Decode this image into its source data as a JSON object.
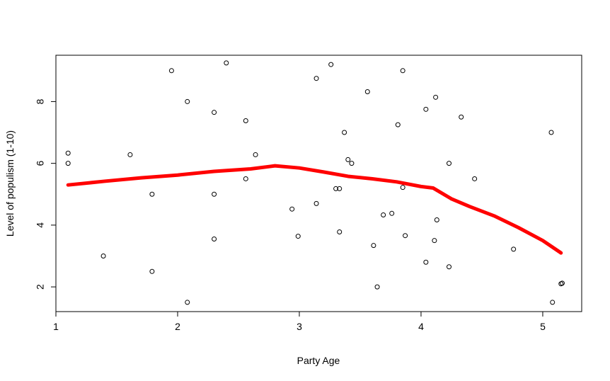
{
  "chart_data": {
    "type": "scatter",
    "title": "",
    "xlabel": "Party Age",
    "ylabel": "Level of populism (1-10)",
    "xlim": [
      1.0,
      5.32
    ],
    "ylim": [
      1.2,
      9.5
    ],
    "xticks": [
      1,
      2,
      3,
      4,
      5
    ],
    "yticks": [
      2,
      4,
      6,
      8
    ],
    "grid": false,
    "legend": "none",
    "colors": {
      "points": "#000000",
      "smooth": "#ff0000"
    },
    "points": [
      {
        "x": 1.1,
        "y": 6.33
      },
      {
        "x": 1.1,
        "y": 6.0
      },
      {
        "x": 1.39,
        "y": 3.0
      },
      {
        "x": 1.61,
        "y": 6.28
      },
      {
        "x": 1.79,
        "y": 5.0
      },
      {
        "x": 1.79,
        "y": 2.5
      },
      {
        "x": 1.95,
        "y": 9.0
      },
      {
        "x": 2.08,
        "y": 8.0
      },
      {
        "x": 2.08,
        "y": 1.5
      },
      {
        "x": 2.3,
        "y": 7.65
      },
      {
        "x": 2.3,
        "y": 5.0
      },
      {
        "x": 2.3,
        "y": 3.55
      },
      {
        "x": 2.4,
        "y": 9.25
      },
      {
        "x": 2.56,
        "y": 7.38
      },
      {
        "x": 2.56,
        "y": 5.5
      },
      {
        "x": 2.64,
        "y": 6.28
      },
      {
        "x": 2.94,
        "y": 4.52
      },
      {
        "x": 2.99,
        "y": 3.64
      },
      {
        "x": 3.14,
        "y": 8.75
      },
      {
        "x": 3.14,
        "y": 4.7
      },
      {
        "x": 3.26,
        "y": 9.2
      },
      {
        "x": 3.3,
        "y": 5.18
      },
      {
        "x": 3.33,
        "y": 5.18
      },
      {
        "x": 3.33,
        "y": 3.78
      },
      {
        "x": 3.37,
        "y": 7.0
      },
      {
        "x": 3.4,
        "y": 6.12
      },
      {
        "x": 3.43,
        "y": 6.0
      },
      {
        "x": 3.56,
        "y": 8.32
      },
      {
        "x": 3.61,
        "y": 3.34
      },
      {
        "x": 3.64,
        "y": 2.0
      },
      {
        "x": 3.69,
        "y": 4.33
      },
      {
        "x": 3.76,
        "y": 4.38
      },
      {
        "x": 3.81,
        "y": 7.25
      },
      {
        "x": 3.85,
        "y": 9.0
      },
      {
        "x": 3.85,
        "y": 5.22
      },
      {
        "x": 3.87,
        "y": 3.66
      },
      {
        "x": 4.04,
        "y": 7.75
      },
      {
        "x": 4.04,
        "y": 2.8
      },
      {
        "x": 4.12,
        "y": 8.14
      },
      {
        "x": 4.11,
        "y": 3.5
      },
      {
        "x": 4.13,
        "y": 4.17
      },
      {
        "x": 4.23,
        "y": 6.0
      },
      {
        "x": 4.23,
        "y": 2.65
      },
      {
        "x": 4.33,
        "y": 7.5
      },
      {
        "x": 4.44,
        "y": 5.5
      },
      {
        "x": 4.76,
        "y": 3.22
      },
      {
        "x": 5.07,
        "y": 7.0
      },
      {
        "x": 5.08,
        "y": 1.5
      },
      {
        "x": 5.15,
        "y": 2.1
      },
      {
        "x": 5.16,
        "y": 2.12
      }
    ],
    "smooth_line": {
      "x": [
        1.1,
        1.4,
        1.7,
        2.0,
        2.3,
        2.6,
        2.8,
        3.0,
        3.2,
        3.4,
        3.6,
        3.8,
        4.0,
        4.1,
        4.25,
        4.4,
        4.6,
        4.8,
        5.0,
        5.15
      ],
      "y": [
        5.3,
        5.42,
        5.53,
        5.62,
        5.74,
        5.82,
        5.92,
        5.85,
        5.72,
        5.58,
        5.5,
        5.4,
        5.25,
        5.2,
        4.85,
        4.6,
        4.3,
        3.92,
        3.5,
        3.1
      ]
    }
  }
}
